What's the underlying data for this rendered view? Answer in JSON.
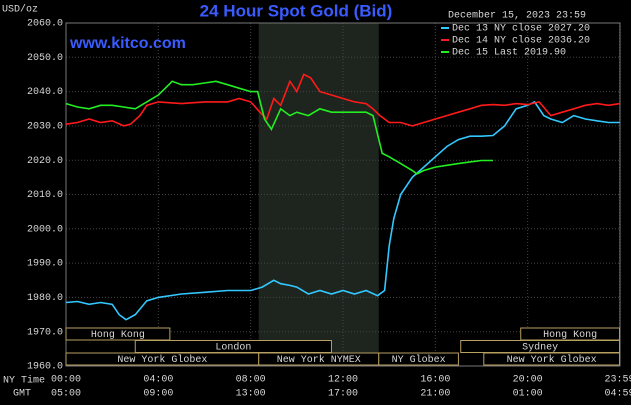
{
  "chart_data": {
    "type": "line",
    "title": "24 Hour Spot Gold (Bid)",
    "site": "www.kitco.com",
    "timestamp": "December 15, 2023 23:59",
    "y_unit": "USD/oz",
    "x_row_labels": [
      "NY Time",
      "GMT"
    ],
    "xlim": [
      0,
      24
    ],
    "ylim": [
      1960,
      2060
    ],
    "yticks": [
      {
        "value": 1960,
        "label": "1960.0"
      },
      {
        "value": 1970,
        "label": "1970.0"
      },
      {
        "value": 1980,
        "label": "1980.0"
      },
      {
        "value": 1990,
        "label": "1990.0"
      },
      {
        "value": 2000,
        "label": "2000.0"
      },
      {
        "value": 2010,
        "label": "2010.0"
      },
      {
        "value": 2020,
        "label": "2020.0"
      },
      {
        "value": 2030,
        "label": "2030.0"
      },
      {
        "value": 2040,
        "label": "2040.0"
      },
      {
        "value": 2050,
        "label": "2050.0"
      },
      {
        "value": 2060,
        "label": "2060.0"
      }
    ],
    "xticks": [
      {
        "value": 0,
        "label": "00:00"
      },
      {
        "value": 4,
        "label": "04:00"
      },
      {
        "value": 8,
        "label": "08:00"
      },
      {
        "value": 12,
        "label": "12:00"
      },
      {
        "value": 16,
        "label": "16:00"
      },
      {
        "value": 20,
        "label": "20:00"
      },
      {
        "value": 23.98,
        "label": "23:59"
      }
    ],
    "x2ticks": [
      {
        "value": 0,
        "label": "05:00"
      },
      {
        "value": 4,
        "label": "09:00"
      },
      {
        "value": 8,
        "label": "13:00"
      },
      {
        "value": 12,
        "label": "17:00"
      },
      {
        "value": 16,
        "label": "21:00"
      },
      {
        "value": 20,
        "label": "01:00"
      },
      {
        "value": 23.98,
        "label": "04:59"
      }
    ],
    "grid": true,
    "shaded": [
      8.35,
      13.55
    ],
    "sessions": [
      {
        "label": "Hong Kong",
        "start": 0,
        "end": 4.5,
        "row": 0
      },
      {
        "label": "London",
        "start": 3,
        "end": 11.5,
        "row": 1
      },
      {
        "label": "New York Globex",
        "start": 0,
        "end": 8.35,
        "row": 2
      },
      {
        "label": "New York NYMEX",
        "start": 8.35,
        "end": 13.55,
        "row": 2
      },
      {
        "label": "NY Globex",
        "start": 13.55,
        "end": 17,
        "row": 2
      },
      {
        "label": "Sydney",
        "start": 17.1,
        "end": 23.98,
        "row": 1
      },
      {
        "label": "Hong Kong",
        "start": 19.7,
        "end": 23.98,
        "row": 0
      },
      {
        "label": "New York Globex",
        "start": 18.1,
        "end": 23.98,
        "row": 2
      }
    ],
    "series": [
      {
        "name": "Dec 13 NY close 2027.20",
        "color": "#33c8ff",
        "x": [
          0,
          0.5,
          1,
          1.5,
          2,
          2.3,
          2.6,
          3,
          3.5,
          4,
          5,
          6,
          7,
          8,
          8.5,
          9,
          9.3,
          9.7,
          10,
          10.5,
          11,
          11.5,
          12,
          12.5,
          13,
          13.5,
          13.8,
          14,
          14.2,
          14.5,
          15,
          15.5,
          16,
          16.5,
          17,
          17.5,
          18,
          18.5,
          19,
          19.5,
          20,
          20.3,
          20.7,
          21,
          21.5,
          22,
          22.5,
          23,
          23.5,
          24
        ],
        "values": [
          1978.5,
          1978.8,
          1978,
          1978.5,
          1978,
          1975,
          1973.5,
          1975,
          1979,
          1980,
          1981,
          1981.5,
          1982,
          1982,
          1983,
          1985,
          1984,
          1983.5,
          1983,
          1981,
          1982,
          1981,
          1982,
          1981,
          1982,
          1980.5,
          1982,
          1995,
          2003,
          2010,
          2015,
          2018,
          2021,
          2024,
          2026,
          2027,
          2027,
          2027.2,
          2030,
          2035,
          2036,
          2037,
          2033,
          2032,
          2031,
          2033,
          2032,
          2031.5,
          2031,
          2031
        ],
        "axis": "y"
      },
      {
        "name": "Dec 14 NY close 2036.20",
        "color": "#ff1a1a",
        "x": [
          0,
          0.5,
          1,
          1.5,
          2,
          2.5,
          2.8,
          3.2,
          3.5,
          4,
          5,
          6,
          7,
          7.5,
          8,
          8.4,
          8.7,
          9,
          9.3,
          9.7,
          10,
          10.3,
          10.6,
          11,
          11.5,
          12,
          12.5,
          13,
          13.3,
          13.6,
          14,
          14.5,
          15,
          15.5,
          16,
          16.5,
          17,
          17.5,
          18,
          18.5,
          19,
          19.5,
          20,
          20.5,
          21,
          21.5,
          22,
          22.5,
          23,
          23.5,
          24
        ],
        "values": [
          2030.5,
          2031,
          2032,
          2031,
          2031.5,
          2030,
          2030.5,
          2033,
          2036,
          2037,
          2036.5,
          2037,
          2037,
          2038,
          2037,
          2034,
          2032,
          2038,
          2036,
          2043,
          2040,
          2045,
          2044,
          2040,
          2039,
          2038,
          2037,
          2036.5,
          2035,
          2033,
          2031,
          2031,
          2030,
          2031,
          2032,
          2033,
          2034,
          2035,
          2036,
          2036.2,
          2036,
          2036.5,
          2036.2,
          2037,
          2033,
          2034,
          2035,
          2036,
          2036.5,
          2036,
          2036.5
        ],
        "axis": "y"
      },
      {
        "name": "Dec 15 Last 2019.90",
        "color": "#22ee22",
        "x": [
          0,
          0.5,
          1,
          1.5,
          2,
          2.5,
          3,
          3.5,
          4,
          4.3,
          4.6,
          5,
          5.5,
          6,
          6.5,
          7,
          7.5,
          8,
          8.3,
          8.6,
          8.9,
          9.3,
          9.7,
          10,
          10.5,
          11,
          11.5,
          12,
          12.5,
          13,
          13.3,
          13.7,
          14,
          14.5,
          15,
          15.2,
          15.5,
          16,
          16.5,
          17,
          17.5,
          18,
          18.5
        ],
        "values": [
          2036.5,
          2035.5,
          2035,
          2036,
          2036,
          2035.5,
          2035,
          2037,
          2039,
          2041,
          2043,
          2042,
          2042,
          2042.5,
          2043,
          2042,
          2041,
          2040,
          2040,
          2032,
          2029,
          2035,
          2033,
          2034,
          2033,
          2035,
          2034,
          2034,
          2034,
          2034,
          2033,
          2022,
          2021,
          2019,
          2017,
          2016,
          2017,
          2018,
          2018.5,
          2019,
          2019.5,
          2019.9,
          2019.9
        ],
        "axis": "y"
      }
    ]
  }
}
